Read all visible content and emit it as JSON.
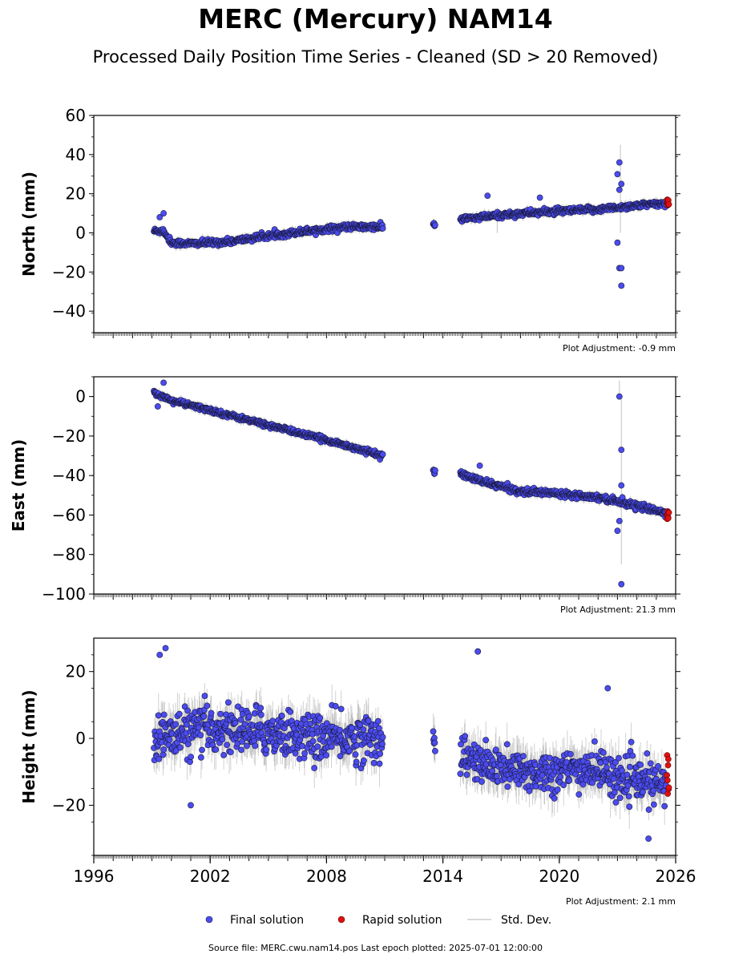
{
  "title": "MERC (Mercury) NAM14",
  "subtitle": "Processed Daily Position Time Series - Cleaned (SD > 20 Removed)",
  "footer": "Source file: MERC.cwu.nam14.pos  Last epoch plotted: 2025-07-01 12:00:00",
  "legend": {
    "final": "Final solution",
    "rapid": "Rapid solution",
    "std": "Std. Dev."
  },
  "colors": {
    "final": "#4b4bef",
    "final_edge": "#1a1a40",
    "rapid": "#e01010",
    "std": "#9a9a9a"
  },
  "chart_data": [
    {
      "type": "scatter",
      "ylabel": "North (mm)",
      "adjustment": "Plot Adjustment: -0.9 mm",
      "xlim": [
        1996,
        2026
      ],
      "ylim": [
        -51,
        60
      ],
      "yticks": [
        -40,
        -20,
        0,
        20,
        40,
        60
      ],
      "yticklabels": [
        "−40",
        "−20",
        "0",
        "20",
        "40",
        "60"
      ],
      "final_segments": [
        {
          "x": [
            1999.1,
            1999.6,
            2000.0,
            2001.0,
            2003.0,
            2005.0,
            2007.0,
            2009.0,
            2010.9
          ],
          "y": [
            1,
            1,
            -5,
            -5.5,
            -4.5,
            -1.5,
            1,
            3,
            3
          ],
          "noise": 1.5,
          "spikes": [
            [
              1999.4,
              8
            ],
            [
              1999.6,
              10
            ]
          ]
        },
        {
          "x": [
            2013.5,
            2013.6
          ],
          "y": [
            5,
            3
          ],
          "noise": 2
        },
        {
          "x": [
            2014.9,
            2016.0,
            2018.0,
            2020.0,
            2022.0,
            2023.0,
            2024.0,
            2025.5
          ],
          "y": [
            7,
            8,
            10,
            11,
            12,
            13,
            14,
            15
          ],
          "noise": 1.5,
          "spikes": [
            [
              2016.3,
              19
            ],
            [
              2019.0,
              18
            ],
            [
              2023.1,
              36
            ],
            [
              2023.0,
              30
            ],
            [
              2023.1,
              -18
            ],
            [
              2023.2,
              -18
            ],
            [
              2023.2,
              -27
            ],
            [
              2023.1,
              22
            ],
            [
              2023.0,
              -5
            ],
            [
              2023.2,
              25
            ]
          ]
        }
      ],
      "rapid": {
        "x": [
          2025.55,
          2025.65
        ],
        "y": [
          14,
          17
        ]
      },
      "std": {
        "base": 2.0,
        "spikes": [
          [
            2023.15,
            45
          ],
          [
            2016.8,
            8
          ]
        ]
      }
    },
    {
      "type": "scatter",
      "ylabel": "East (mm)",
      "adjustment": "Plot Adjustment: 21.3 mm",
      "xlim": [
        1996,
        2026
      ],
      "ylim": [
        -100,
        10
      ],
      "yticks": [
        -100,
        -80,
        -60,
        -40,
        -20,
        0
      ],
      "yticklabels": [
        "−100",
        "−80",
        "−60",
        "−40",
        "−20",
        "0"
      ],
      "final_segments": [
        {
          "x": [
            1999.1,
            2000.0,
            2002.0,
            2004.0,
            2006.0,
            2008.0,
            2010.9
          ],
          "y": [
            2,
            -2,
            -7,
            -12,
            -17,
            -22,
            -30
          ],
          "noise": 1.2,
          "spikes": [
            [
              1999.6,
              7
            ],
            [
              1999.3,
              -5
            ]
          ]
        },
        {
          "x": [
            2013.5,
            2013.6
          ],
          "y": [
            -36,
            -40
          ],
          "noise": 2
        },
        {
          "x": [
            2014.9,
            2016.0,
            2018.0,
            2020.0,
            2022.0,
            2023.0,
            2025.5
          ],
          "y": [
            -39,
            -43,
            -48,
            -49,
            -51,
            -53,
            -59
          ],
          "noise": 1.5,
          "spikes": [
            [
              2015.9,
              -35
            ],
            [
              2023.1,
              0
            ],
            [
              2023.2,
              -27
            ],
            [
              2023.2,
              -95
            ],
            [
              2023.0,
              -68
            ],
            [
              2023.2,
              -45
            ],
            [
              2023.1,
              -63
            ]
          ]
        }
      ],
      "rapid": {
        "x": [
          2025.55,
          2025.65
        ],
        "y": [
          -58,
          -62
        ]
      },
      "std": {
        "base": 2.0,
        "spikes": [
          [
            2023.1,
            8
          ],
          [
            2023.2,
            -85
          ]
        ]
      }
    },
    {
      "type": "scatter",
      "ylabel": "Height (mm)",
      "adjustment": "Plot Adjustment: 2.1 mm",
      "xlim": [
        1996,
        2026
      ],
      "ylim": [
        -35,
        30
      ],
      "yticks": [
        -20,
        0,
        20
      ],
      "yticklabels": [
        "−20",
        "0",
        "20"
      ],
      "xticks": [
        1996,
        2002,
        2008,
        2014,
        2020,
        2026
      ],
      "xticklabels": [
        "1996",
        "2002",
        "2008",
        "2014",
        "2020",
        "2026"
      ],
      "final_segments": [
        {
          "x": [
            1999.1,
            2002.0,
            2005.0,
            2008.0,
            2010.9
          ],
          "y": [
            0,
            3,
            2,
            0,
            0
          ],
          "noise": 7,
          "spikes": [
            [
              1999.7,
              27
            ],
            [
              1999.4,
              25
            ],
            [
              2001.0,
              -20
            ],
            [
              2015.8,
              26
            ]
          ]
        },
        {
          "x": [
            2013.5,
            2013.6
          ],
          "y": [
            2,
            -3
          ],
          "noise": 2
        },
        {
          "x": [
            2014.9,
            2016.0,
            2018.0,
            2020.0,
            2022.0,
            2023.0,
            2025.5
          ],
          "y": [
            -5,
            -8,
            -10,
            -10,
            -9,
            -12,
            -14
          ],
          "noise": 6,
          "spikes": [
            [
              2015.8,
              26
            ],
            [
              2022.5,
              15
            ],
            [
              2024.6,
              -30
            ]
          ]
        }
      ],
      "rapid": {
        "x": [
          2025.55,
          2025.65
        ],
        "y": [
          -17,
          -5
        ]
      },
      "std": {
        "base": 5.0,
        "spikes": []
      }
    }
  ]
}
